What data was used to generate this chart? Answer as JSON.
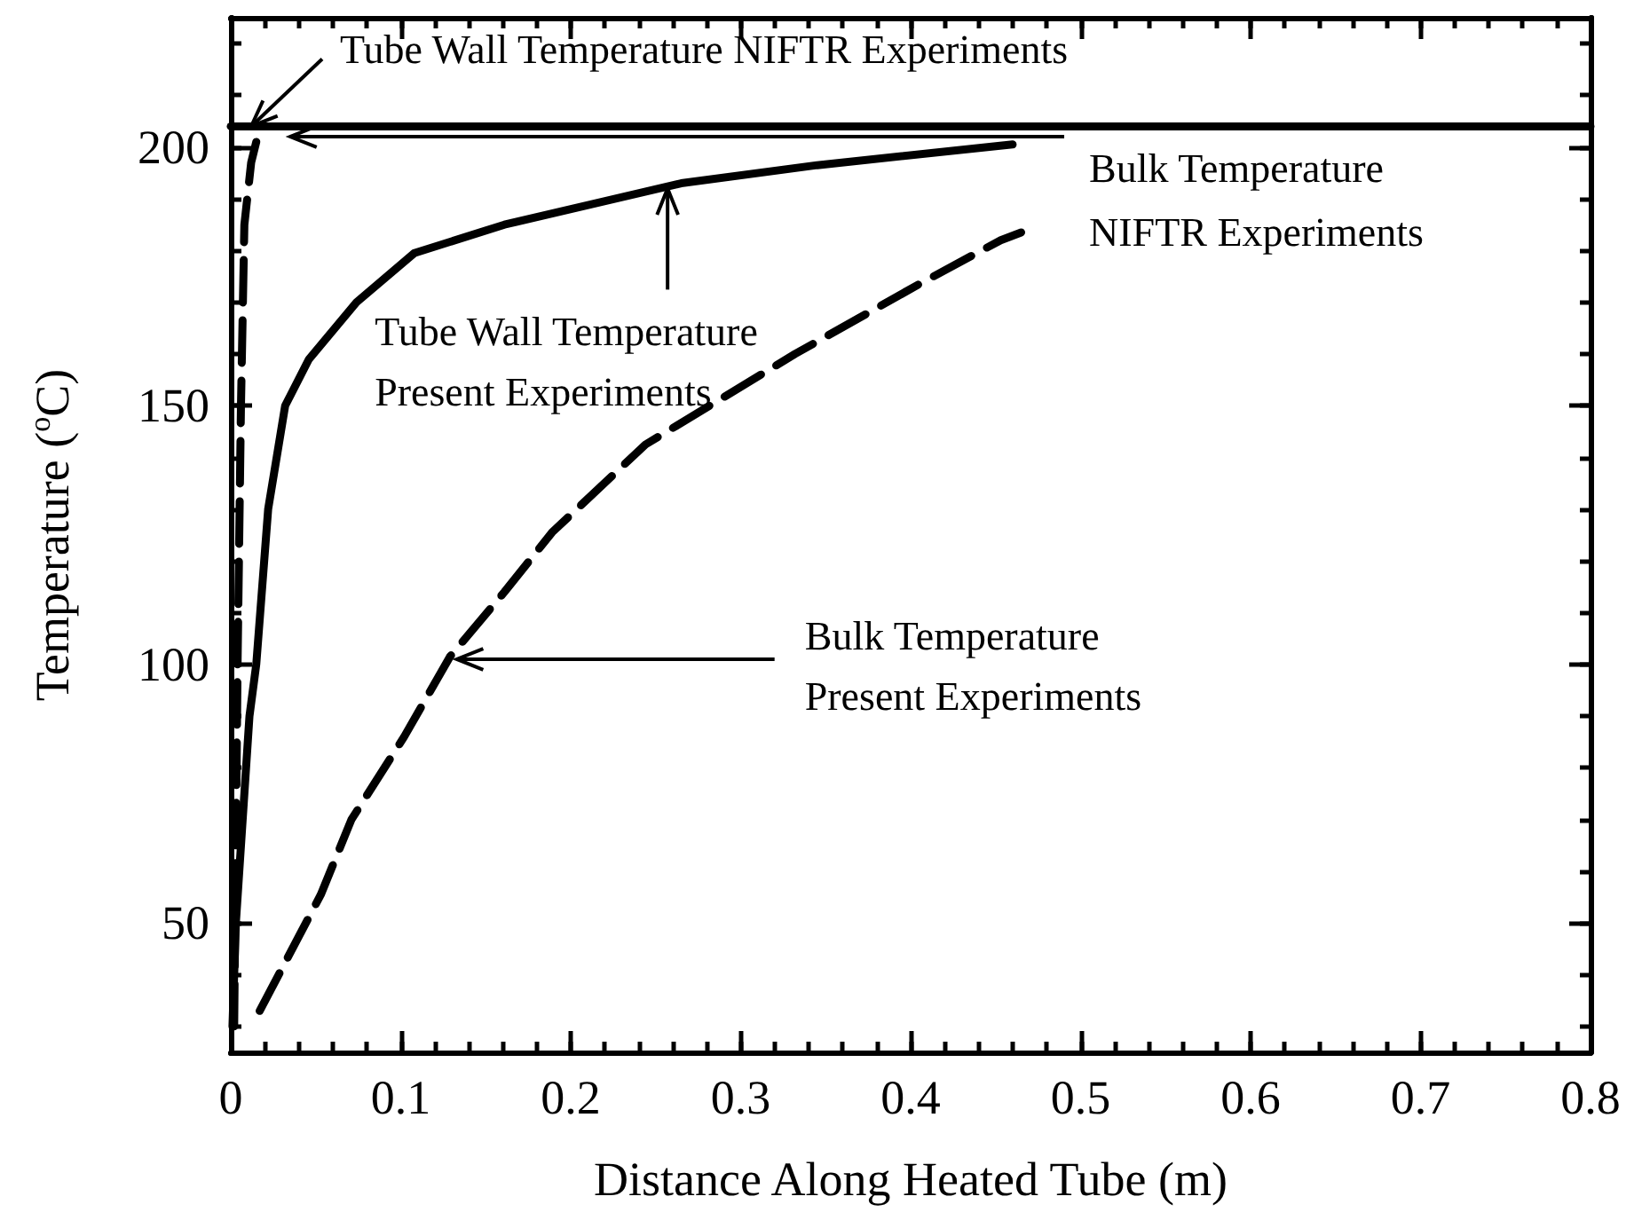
{
  "chart_data": {
    "type": "line",
    "xlabel": "Distance Along Heated Tube (m)",
    "ylabel": "Temperature ($^{o}$C)",
    "xlim": [
      0,
      0.8
    ],
    "xticks": [
      0,
      0.1,
      0.2,
      0.3,
      0.4,
      0.5,
      0.6,
      0.7,
      0.8
    ],
    "ylim": [
      25,
      225
    ],
    "yticks": [
      50,
      100,
      150,
      200
    ],
    "grid": false,
    "marker": "none",
    "series": [
      {
        "color": "#000000",
        "line_style": "solid",
        "x": [
          0,
          0.8
        ],
        "values": [
          204,
          204
        ]
      },
      {
        "color": "#000000",
        "line_style": "dashed",
        "x": [
          0.002,
          0.004,
          0.006,
          0.008,
          0.012,
          0.015
        ],
        "values": [
          30,
          100,
          150,
          185,
          197,
          201
        ]
      },
      {
        "color": "#000000",
        "line_style": "solid",
        "x": [
          0.001,
          0.003,
          0.011,
          0.015,
          0.022,
          0.032,
          0.046,
          0.074,
          0.108,
          0.161,
          0.213,
          0.265,
          0.345,
          0.46
        ],
        "values": [
          30,
          50,
          90,
          100,
          130,
          150,
          159,
          170,
          179.5,
          185,
          189,
          193,
          196.5,
          200.5
        ]
      },
      {
        "color": "#000000",
        "line_style": "dashed",
        "x": [
          0.017,
          0.053,
          0.071,
          0.102,
          0.129,
          0.161,
          0.189,
          0.244,
          0.332,
          0.405,
          0.453,
          0.465
        ],
        "values": [
          33,
          55.5,
          70,
          86,
          101.5,
          114,
          125.5,
          142.5,
          160,
          173.5,
          182,
          183.5
        ]
      }
    ],
    "annotations": [
      {
        "text": "Tube Wall Temperature NIFTR Experiments",
        "x": 0.012,
        "y": 204
      },
      {
        "text": "Bulk Temperature\nNIFTR Experiments",
        "x": 0.035,
        "y": 202
      },
      {
        "text": "Tube Wall Temperature\nPresent Experiments",
        "x": 0.257,
        "y": 192
      },
      {
        "text": "Bulk Temperature\nPresent Experiments",
        "x": 0.133,
        "y": 101
      }
    ]
  }
}
